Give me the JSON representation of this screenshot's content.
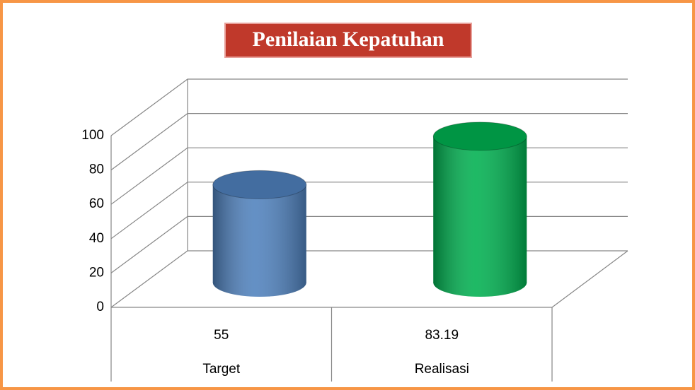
{
  "chart_data": {
    "type": "bar",
    "title": "Penilaian Kepatuhan",
    "categories": [
      "Target",
      "Realisasi"
    ],
    "values": [
      55,
      83.19
    ],
    "colors": [
      "#4f81bd",
      "#00b050"
    ],
    "ylim": [
      0,
      100
    ],
    "yticks": [
      0,
      20,
      40,
      60,
      80,
      100
    ],
    "grid": true,
    "data_table": true
  }
}
